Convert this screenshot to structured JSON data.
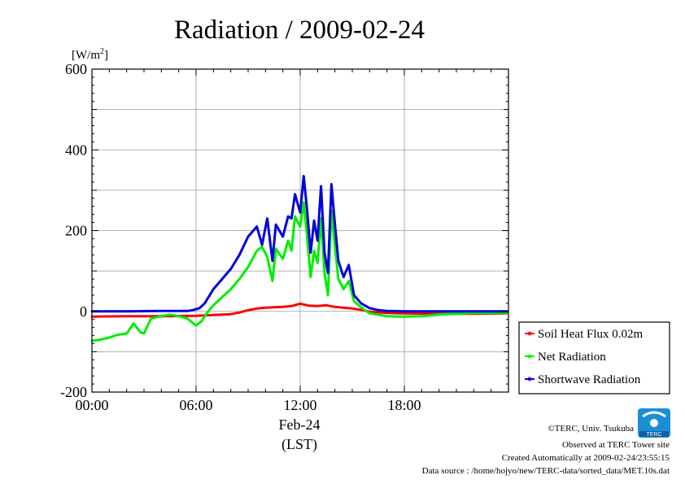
{
  "chart_data": {
    "type": "line",
    "title": "Radiation / 2009-02-24",
    "ylabel": "[W/m",
    "ylabel_sup": "2",
    "ylabel_close": "]",
    "xlabel_date": "Feb-24",
    "xlabel_unit": "(LST)",
    "xlim": [
      0,
      24
    ],
    "ylim": [
      -200,
      600
    ],
    "grid": true,
    "legend_position": "right",
    "x_ticks": [
      {
        "value": 0,
        "label": "00:00"
      },
      {
        "value": 6,
        "label": "06:00"
      },
      {
        "value": 12,
        "label": "12:00"
      },
      {
        "value": 18,
        "label": "18:00"
      }
    ],
    "y_ticks": [
      {
        "value": -200,
        "label": "-200"
      },
      {
        "value": 0,
        "label": "0"
      },
      {
        "value": 200,
        "label": "200"
      },
      {
        "value": 400,
        "label": "400"
      },
      {
        "value": 600,
        "label": "600"
      }
    ],
    "series": [
      {
        "name": "Soil Heat Flux 0.02m",
        "color": "#ff0000",
        "points": [
          [
            0,
            -13
          ],
          [
            2,
            -12
          ],
          [
            4,
            -12
          ],
          [
            6,
            -11
          ],
          [
            8,
            -7
          ],
          [
            8.5,
            -3
          ],
          [
            9,
            3
          ],
          [
            9.5,
            7
          ],
          [
            10,
            9
          ],
          [
            11,
            11
          ],
          [
            11.5,
            13
          ],
          [
            12,
            19
          ],
          [
            12.5,
            14
          ],
          [
            13,
            13
          ],
          [
            13.5,
            15
          ],
          [
            14,
            11
          ],
          [
            14.5,
            9
          ],
          [
            15,
            7
          ],
          [
            15.5,
            4
          ],
          [
            16,
            -1
          ],
          [
            17,
            -4
          ],
          [
            18,
            -5
          ],
          [
            20,
            -6
          ],
          [
            22,
            -6
          ],
          [
            23.9,
            -5
          ]
        ]
      },
      {
        "name": "Net Radiation",
        "color": "#00ee00",
        "points": [
          [
            0,
            -73
          ],
          [
            0.5,
            -70
          ],
          [
            1,
            -65
          ],
          [
            1.5,
            -58
          ],
          [
            2,
            -55
          ],
          [
            2.4,
            -30
          ],
          [
            2.8,
            -52
          ],
          [
            3,
            -55
          ],
          [
            3.4,
            -18
          ],
          [
            4,
            -12
          ],
          [
            4.5,
            -8
          ],
          [
            5,
            -12
          ],
          [
            5.5,
            -18
          ],
          [
            6,
            -35
          ],
          [
            6.3,
            -25
          ],
          [
            6.7,
            0
          ],
          [
            7,
            15
          ],
          [
            7.5,
            35
          ],
          [
            8,
            55
          ],
          [
            8.5,
            80
          ],
          [
            9,
            110
          ],
          [
            9.5,
            150
          ],
          [
            9.8,
            160
          ],
          [
            10.1,
            135
          ],
          [
            10.4,
            75
          ],
          [
            10.6,
            155
          ],
          [
            11,
            130
          ],
          [
            11.3,
            175
          ],
          [
            11.5,
            150
          ],
          [
            11.7,
            235
          ],
          [
            12,
            210
          ],
          [
            12.2,
            270
          ],
          [
            12.4,
            185
          ],
          [
            12.6,
            85
          ],
          [
            12.8,
            150
          ],
          [
            13,
            120
          ],
          [
            13.2,
            230
          ],
          [
            13.4,
            95
          ],
          [
            13.6,
            40
          ],
          [
            13.8,
            250
          ],
          [
            14,
            160
          ],
          [
            14.2,
            80
          ],
          [
            14.5,
            55
          ],
          [
            14.8,
            75
          ],
          [
            15.1,
            25
          ],
          [
            15.5,
            10
          ],
          [
            16,
            -5
          ],
          [
            17,
            -12
          ],
          [
            18,
            -13
          ],
          [
            19,
            -12
          ],
          [
            20,
            -8
          ],
          [
            21,
            -6
          ],
          [
            22,
            -4
          ],
          [
            23.9,
            -4
          ]
        ]
      },
      {
        "name": "Shortwave Radiation",
        "color": "#0000dd",
        "points": [
          [
            0,
            0
          ],
          [
            2,
            0
          ],
          [
            4,
            1
          ],
          [
            5.5,
            1
          ],
          [
            5.8,
            3
          ],
          [
            6.2,
            8
          ],
          [
            6.5,
            20
          ],
          [
            7,
            55
          ],
          [
            7.5,
            80
          ],
          [
            8,
            105
          ],
          [
            8.5,
            140
          ],
          [
            9,
            185
          ],
          [
            9.5,
            210
          ],
          [
            9.8,
            165
          ],
          [
            10.1,
            230
          ],
          [
            10.4,
            125
          ],
          [
            10.6,
            215
          ],
          [
            11,
            185
          ],
          [
            11.3,
            235
          ],
          [
            11.5,
            230
          ],
          [
            11.7,
            290
          ],
          [
            12,
            245
          ],
          [
            12.2,
            335
          ],
          [
            12.4,
            250
          ],
          [
            12.6,
            145
          ],
          [
            12.8,
            225
          ],
          [
            13,
            175
          ],
          [
            13.2,
            310
          ],
          [
            13.4,
            145
          ],
          [
            13.6,
            95
          ],
          [
            13.8,
            315
          ],
          [
            14,
            215
          ],
          [
            14.2,
            125
          ],
          [
            14.5,
            85
          ],
          [
            14.8,
            115
          ],
          [
            15.1,
            40
          ],
          [
            15.5,
            20
          ],
          [
            16,
            8
          ],
          [
            16.5,
            3
          ],
          [
            17,
            1
          ],
          [
            18,
            0
          ],
          [
            20,
            0
          ],
          [
            22,
            0
          ],
          [
            23.9,
            0
          ]
        ]
      }
    ]
  },
  "credits": {
    "copyright": "©TERC, Univ. Tsukuba",
    "site": "Observed at TERC Tower site",
    "created": "Created Automatically at 2009-02-24/23:55:15",
    "source": "Data source : /home/hojyo/new/TERC-data/sorted_data/MET.10s.dat",
    "logo_text": "TERC"
  }
}
